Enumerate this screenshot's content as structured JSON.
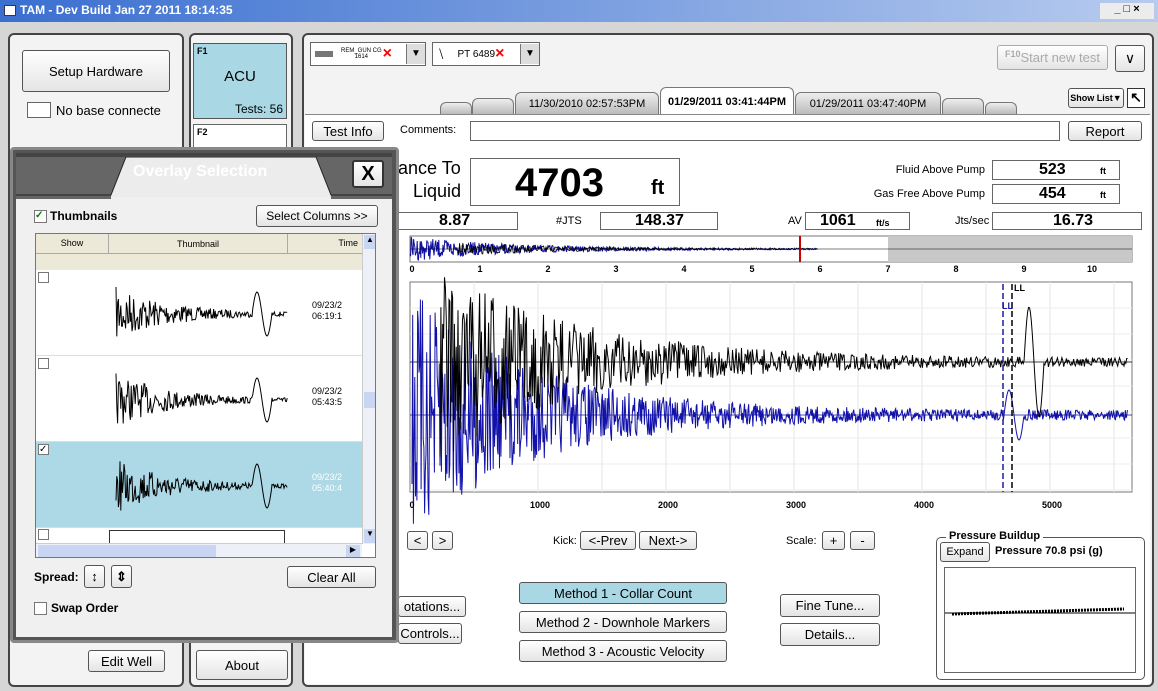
{
  "window": {
    "title": "TAM - Dev Build Jan 27 2011 18:14:35"
  },
  "left_panel": {
    "setup_hardware": "Setup Hardware",
    "base_status": "No base connecte",
    "edit_well": "Edit Well"
  },
  "sidebar": {
    "f1": "F1",
    "acu": "ACU",
    "tests": "Tests: 56",
    "f2": "F2",
    "about": "About"
  },
  "toolbar": {
    "sensor1": "REM_GUN CG",
    "sensor1_id": "1614",
    "sensor2": "PT 6489",
    "f10": "F10",
    "start": "Start new test",
    "show_list": "Show List"
  },
  "tabs": [
    "11/30/2010 02:57:53PM",
    "01/29/2011 03:41:44PM",
    "01/29/2011 03:47:40PM"
  ],
  "test_bar": {
    "test_info": "Test Info",
    "comments": "Comments:",
    "report": "Report"
  },
  "readout": {
    "distance_label_1": "ance To",
    "distance_label_2": "Liquid",
    "distance": "4703",
    "distance_unit": "ft",
    "fluid_label": "Fluid Above Pump",
    "fluid": "523",
    "fluid_unit": "ft",
    "gas_label": "Gas Free Above Pump",
    "gas": "454",
    "gas_unit": "ft",
    "first": "8.87",
    "jts_label": "#JTS",
    "jts": "148.37",
    "av_label": "AV",
    "av": "1061",
    "av_unit": "ft/s",
    "jts_sec_label": "Jts/sec",
    "jts_sec": "16.73"
  },
  "overview_ticks": [
    "0",
    "1",
    "2",
    "3",
    "4",
    "5",
    "6",
    "7",
    "8",
    "9",
    "10"
  ],
  "main_ticks": [
    "0",
    "1000",
    "2000",
    "3000",
    "4000",
    "5000"
  ],
  "markers": {
    "top": "LL",
    "left": "LL"
  },
  "nav": {
    "prev": "<",
    "next": ">",
    "kick": "Kick:",
    "kick_prev": "<-Prev",
    "kick_next": "Next->",
    "scale": "Scale:",
    "plus": "+",
    "minus": "-"
  },
  "buttons": {
    "annotations": "otations...",
    "controls": "Controls...",
    "method1": "Method 1 - Collar Count",
    "method2": "Method 2 - Downhole Markers",
    "method3": "Method 3 - Acoustic Velocity",
    "fine_tune": "Fine Tune...",
    "details": "Details..."
  },
  "pressure": {
    "title": "Pressure Buildup",
    "expand": "Expand",
    "value": "Pressure 70.8 psi (g)"
  },
  "overlay": {
    "title": "Overlay Selection",
    "close": "X",
    "thumbnails": "Thumbnails",
    "select_columns": "Select Columns >>",
    "headers": [
      "Show",
      "Thumbnail",
      "Time"
    ],
    "rows": [
      {
        "date": "09/23/2",
        "time": "06:19:1"
      },
      {
        "date": "09/23/2",
        "time": "05:43:5"
      },
      {
        "date": "09/23/2",
        "time": "05:40:4"
      }
    ],
    "spread": "Spread:",
    "clear_all": "Clear All",
    "swap_order": "Swap Order"
  }
}
